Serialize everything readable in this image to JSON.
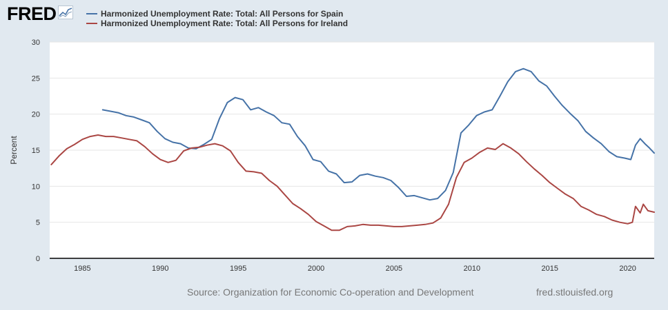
{
  "header": {
    "logo_text": "FRED",
    "logo_icon": "line-chart-icon"
  },
  "footer": {
    "source": "Source: Organization for Economic Co-operation and Development",
    "site": "fred.stlouisfed.org"
  },
  "chart_data": {
    "type": "line",
    "title": "",
    "xlabel": "",
    "ylabel": "Percent",
    "xlim": [
      1982.9,
      2021.7
    ],
    "ylim": [
      0,
      30
    ],
    "yticks": [
      0,
      5,
      10,
      15,
      20,
      25,
      30
    ],
    "xticks": [
      1985,
      1990,
      1995,
      2000,
      2005,
      2010,
      2015,
      2020
    ],
    "grid": "horizontal",
    "legend_position": "top-left",
    "series": [
      {
        "name": "Harmonized Unemployment Rate: Total: All Persons for Spain",
        "color": "#4572a7",
        "points": [
          [
            1986.3,
            20.6
          ],
          [
            1986.8,
            20.4
          ],
          [
            1987.3,
            20.2
          ],
          [
            1987.8,
            19.8
          ],
          [
            1988.3,
            19.6
          ],
          [
            1988.8,
            19.2
          ],
          [
            1989.3,
            18.8
          ],
          [
            1989.8,
            17.6
          ],
          [
            1990.3,
            16.6
          ],
          [
            1990.8,
            16.1
          ],
          [
            1991.3,
            15.9
          ],
          [
            1991.8,
            15.3
          ],
          [
            1992.3,
            15.2
          ],
          [
            1992.8,
            15.8
          ],
          [
            1993.3,
            16.5
          ],
          [
            1993.8,
            19.4
          ],
          [
            1994.3,
            21.6
          ],
          [
            1994.8,
            22.3
          ],
          [
            1995.3,
            22.0
          ],
          [
            1995.8,
            20.6
          ],
          [
            1996.3,
            20.9
          ],
          [
            1996.8,
            20.3
          ],
          [
            1997.3,
            19.8
          ],
          [
            1997.8,
            18.8
          ],
          [
            1998.3,
            18.6
          ],
          [
            1998.8,
            16.9
          ],
          [
            1999.3,
            15.6
          ],
          [
            1999.8,
            13.7
          ],
          [
            2000.3,
            13.4
          ],
          [
            2000.8,
            12.1
          ],
          [
            2001.3,
            11.7
          ],
          [
            2001.8,
            10.5
          ],
          [
            2002.3,
            10.6
          ],
          [
            2002.8,
            11.5
          ],
          [
            2003.3,
            11.7
          ],
          [
            2003.8,
            11.4
          ],
          [
            2004.3,
            11.2
          ],
          [
            2004.8,
            10.8
          ],
          [
            2005.3,
            9.8
          ],
          [
            2005.8,
            8.6
          ],
          [
            2006.3,
            8.7
          ],
          [
            2006.8,
            8.4
          ],
          [
            2007.3,
            8.1
          ],
          [
            2007.8,
            8.3
          ],
          [
            2008.3,
            9.4
          ],
          [
            2008.8,
            11.9
          ],
          [
            2009.3,
            17.4
          ],
          [
            2009.8,
            18.5
          ],
          [
            2010.3,
            19.8
          ],
          [
            2010.8,
            20.3
          ],
          [
            2011.3,
            20.6
          ],
          [
            2011.8,
            22.5
          ],
          [
            2012.3,
            24.5
          ],
          [
            2012.8,
            25.9
          ],
          [
            2013.3,
            26.3
          ],
          [
            2013.8,
            25.9
          ],
          [
            2014.3,
            24.6
          ],
          [
            2014.8,
            23.9
          ],
          [
            2015.3,
            22.5
          ],
          [
            2015.8,
            21.2
          ],
          [
            2016.3,
            20.1
          ],
          [
            2016.8,
            19.1
          ],
          [
            2017.3,
            17.6
          ],
          [
            2017.8,
            16.7
          ],
          [
            2018.3,
            15.9
          ],
          [
            2018.8,
            14.8
          ],
          [
            2019.3,
            14.1
          ],
          [
            2019.8,
            13.9
          ],
          [
            2020.2,
            13.7
          ],
          [
            2020.5,
            15.7
          ],
          [
            2020.8,
            16.6
          ],
          [
            2021.1,
            15.9
          ],
          [
            2021.4,
            15.3
          ],
          [
            2021.7,
            14.6
          ]
        ]
      },
      {
        "name": "Harmonized Unemployment Rate: Total: All Persons for Ireland",
        "color": "#aa4643",
        "points": [
          [
            1983.0,
            13.0
          ],
          [
            1983.5,
            14.2
          ],
          [
            1984.0,
            15.2
          ],
          [
            1984.5,
            15.8
          ],
          [
            1985.0,
            16.5
          ],
          [
            1985.5,
            16.9
          ],
          [
            1986.0,
            17.1
          ],
          [
            1986.5,
            16.9
          ],
          [
            1987.0,
            16.9
          ],
          [
            1987.5,
            16.7
          ],
          [
            1988.0,
            16.5
          ],
          [
            1988.5,
            16.3
          ],
          [
            1989.0,
            15.5
          ],
          [
            1989.5,
            14.5
          ],
          [
            1990.0,
            13.7
          ],
          [
            1990.5,
            13.3
          ],
          [
            1991.0,
            13.6
          ],
          [
            1991.5,
            14.9
          ],
          [
            1992.0,
            15.3
          ],
          [
            1992.5,
            15.4
          ],
          [
            1993.0,
            15.7
          ],
          [
            1993.5,
            15.9
          ],
          [
            1994.0,
            15.6
          ],
          [
            1994.5,
            14.9
          ],
          [
            1995.0,
            13.3
          ],
          [
            1995.5,
            12.1
          ],
          [
            1996.0,
            12.0
          ],
          [
            1996.5,
            11.8
          ],
          [
            1997.0,
            10.8
          ],
          [
            1997.5,
            10.0
          ],
          [
            1998.0,
            8.8
          ],
          [
            1998.5,
            7.6
          ],
          [
            1999.0,
            6.9
          ],
          [
            1999.5,
            6.1
          ],
          [
            2000.0,
            5.1
          ],
          [
            2000.5,
            4.5
          ],
          [
            2001.0,
            3.9
          ],
          [
            2001.5,
            3.9
          ],
          [
            2002.0,
            4.4
          ],
          [
            2002.5,
            4.5
          ],
          [
            2003.0,
            4.7
          ],
          [
            2003.5,
            4.6
          ],
          [
            2004.0,
            4.6
          ],
          [
            2004.5,
            4.5
          ],
          [
            2005.0,
            4.4
          ],
          [
            2005.5,
            4.4
          ],
          [
            2006.0,
            4.5
          ],
          [
            2006.5,
            4.6
          ],
          [
            2007.0,
            4.7
          ],
          [
            2007.5,
            4.9
          ],
          [
            2008.0,
            5.6
          ],
          [
            2008.5,
            7.5
          ],
          [
            2009.0,
            11.2
          ],
          [
            2009.5,
            13.3
          ],
          [
            2010.0,
            13.9
          ],
          [
            2010.5,
            14.7
          ],
          [
            2011.0,
            15.3
          ],
          [
            2011.5,
            15.1
          ],
          [
            2012.0,
            15.9
          ],
          [
            2012.5,
            15.3
          ],
          [
            2013.0,
            14.5
          ],
          [
            2013.5,
            13.4
          ],
          [
            2014.0,
            12.4
          ],
          [
            2014.5,
            11.5
          ],
          [
            2015.0,
            10.5
          ],
          [
            2015.5,
            9.7
          ],
          [
            2016.0,
            8.9
          ],
          [
            2016.5,
            8.3
          ],
          [
            2017.0,
            7.2
          ],
          [
            2017.5,
            6.7
          ],
          [
            2018.0,
            6.1
          ],
          [
            2018.5,
            5.8
          ],
          [
            2019.0,
            5.3
          ],
          [
            2019.5,
            5.0
          ],
          [
            2020.0,
            4.8
          ],
          [
            2020.3,
            5.0
          ],
          [
            2020.5,
            7.2
          ],
          [
            2020.8,
            6.3
          ],
          [
            2021.0,
            7.5
          ],
          [
            2021.3,
            6.6
          ],
          [
            2021.7,
            6.4
          ]
        ]
      }
    ]
  }
}
